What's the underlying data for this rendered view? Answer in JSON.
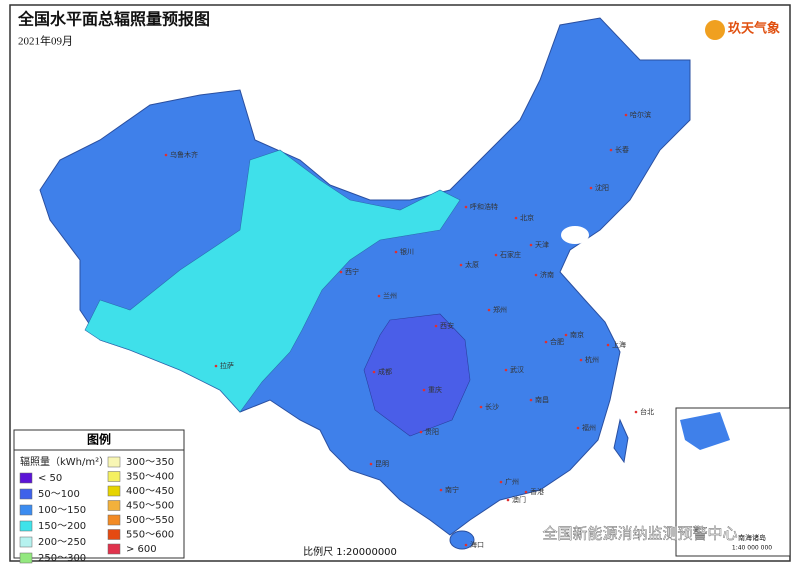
{
  "header": {
    "title": "全国水平面总辐照量预报图",
    "date": "2021年09月",
    "logo": "玖天气象"
  },
  "legend": {
    "title": "图例",
    "unit": "辐照量（kWh/m²）",
    "items": [
      {
        "label": "< 50",
        "color": "#5b14d6"
      },
      {
        "label": "50～100",
        "color": "#3f62ea"
      },
      {
        "label": "100～150",
        "color": "#3b8cf0"
      },
      {
        "label": "150～200",
        "color": "#3fe3ea"
      },
      {
        "label": "200～250",
        "color": "#b6f2ef"
      },
      {
        "label": "250～300",
        "color": "#93e87f"
      },
      {
        "label": "300～350",
        "color": "#f8f6b4"
      },
      {
        "label": "350～400",
        "color": "#f4f060"
      },
      {
        "label": "400～450",
        "color": "#e6d400"
      },
      {
        "label": "450～500",
        "color": "#f2b13c"
      },
      {
        "label": "500～550",
        "color": "#f28a24"
      },
      {
        "label": "550～600",
        "color": "#e54a12"
      },
      {
        "label": "> 600",
        "color": "#e0324c"
      }
    ]
  },
  "scale": "比例尺 1:20000000",
  "watermark": "全国新能源消纳监测预警中心",
  "inset": {
    "title": "南海诸岛",
    "scale": "1:40 000 000"
  },
  "cities": [
    "乌鲁木齐",
    "拉萨",
    "西宁",
    "兰州",
    "银川",
    "呼和浩特",
    "北京",
    "天津",
    "石家庄",
    "太原",
    "济南",
    "郑州",
    "西安",
    "成都",
    "重庆",
    "贵阳",
    "昆明",
    "南宁",
    "广州",
    "长沙",
    "武汉",
    "南昌",
    "合肥",
    "南京",
    "上海",
    "杭州",
    "福州",
    "台北",
    "香港",
    "澳门",
    "海口",
    "沈阳",
    "长春",
    "哈尔滨"
  ]
}
